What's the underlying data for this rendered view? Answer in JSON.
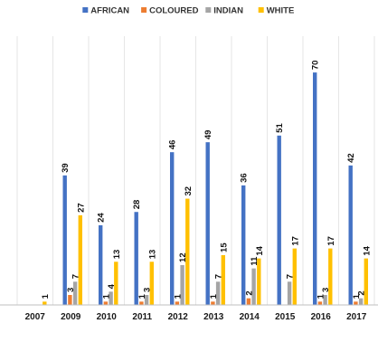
{
  "chart_data": {
    "type": "bar",
    "title": "",
    "xlabel": "",
    "ylabel": "",
    "ylim": [
      0,
      75
    ],
    "grid": "vertical",
    "legend_position": "top",
    "categories": [
      "2007",
      "2009",
      "2010",
      "2011",
      "2012",
      "2013",
      "2014",
      "2015",
      "2016",
      "2017"
    ],
    "series": [
      {
        "name": "AFRICAN",
        "color": "#4472C4",
        "values": [
          0,
          39,
          24,
          28,
          46,
          49,
          36,
          51,
          70,
          42
        ],
        "labels": [
          "",
          "39",
          "24",
          "28",
          "46",
          "49",
          "36",
          "51",
          "70",
          "42"
        ]
      },
      {
        "name": "COLOURED",
        "color": "#ED7D31",
        "values": [
          0,
          3,
          1,
          1,
          1,
          1,
          2,
          0,
          1,
          1
        ],
        "labels": [
          "",
          "3",
          "1",
          "1",
          "1",
          "1",
          "2",
          "",
          "1",
          "1"
        ]
      },
      {
        "name": "INDIAN",
        "color": "#A5A5A5",
        "values": [
          0,
          7,
          4,
          3,
          12,
          7,
          11,
          7,
          3,
          2
        ],
        "labels": [
          "",
          "7",
          "4",
          "3",
          "12",
          "7",
          "11",
          "7",
          "3",
          "2"
        ]
      },
      {
        "name": "WHITE",
        "color": "#FFC000",
        "values": [
          1,
          27,
          13,
          13,
          32,
          15,
          14,
          17,
          17,
          14
        ],
        "labels": [
          "1",
          "27",
          "13",
          "13",
          "32",
          "15",
          "14",
          "17",
          "17",
          "14"
        ]
      }
    ]
  }
}
